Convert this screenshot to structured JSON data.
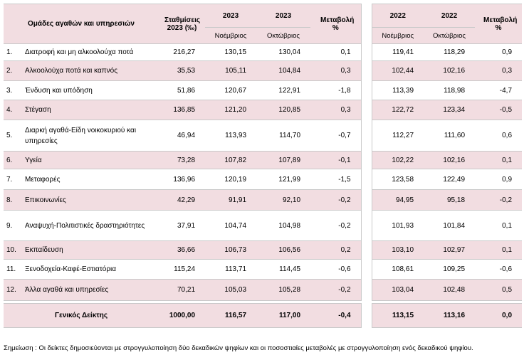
{
  "header": {
    "group": "Ομάδες αγαθών και υπηρεσιών",
    "weights": "Σταθμίσεις 2023 (‰)",
    "year_a": "2023",
    "year_b": "2023",
    "change_a": "Μεταβολή %",
    "year_c": "2022",
    "year_d": "2022",
    "change_b": "Μεταβολή %",
    "month_a": "Νοέμβριος",
    "month_b": "Οκτώβριος",
    "month_c": "Νοέμβριος",
    "month_d": "Οκτώβριος"
  },
  "table": {
    "rows": [
      [
        "1.",
        "Διατροφή και μη αλκοολούχα ποτά",
        "216,27",
        "130,15",
        "130,04",
        "0,1",
        "119,41",
        "118,29",
        "0,9"
      ],
      [
        "2.",
        "Αλκοολούχα ποτά και καπνός",
        "35,53",
        "105,11",
        "104,84",
        "0,3",
        "102,44",
        "102,16",
        "0,3"
      ],
      [
        "3.",
        "Ένδυση και υπόδηση",
        "51,86",
        "120,67",
        "122,91",
        "-1,8",
        "113,39",
        "118,98",
        "-4,7"
      ],
      [
        "4.",
        "Στέγαση",
        "136,85",
        "121,20",
        "120,85",
        "0,3",
        "122,72",
        "123,34",
        "-0,5"
      ],
      [
        "5.",
        "Διαρκή αγαθά-Είδη νοικοκυριού και υπηρεσίες",
        "46,94",
        "113,93",
        "114,70",
        "-0,7",
        "112,27",
        "111,60",
        "0,6"
      ],
      [
        "6.",
        "Υγεία",
        "73,28",
        "107,82",
        "107,89",
        "-0,1",
        "102,22",
        "102,16",
        "0,1"
      ],
      [
        "7.",
        "Μεταφορές",
        "136,96",
        "120,19",
        "121,99",
        "-1,5",
        "123,58",
        "122,49",
        "0,9"
      ],
      [
        "8.",
        "Επικοινωνίες",
        "42,29",
        "91,91",
        "92,10",
        "-0,2",
        "94,95",
        "95,18",
        "-0,2"
      ],
      [
        "9.",
        "Αναψυχή-Πολιτιστικές δραστηριότητες",
        "37,91",
        "104,74",
        "104,98",
        "-0,2",
        "101,93",
        "101,84",
        "0,1"
      ],
      [
        "10.",
        "Εκπαίδευση",
        "36,66",
        "106,73",
        "106,56",
        "0,2",
        "103,10",
        "102,97",
        "0,1"
      ],
      [
        "11.",
        "Ξενοδοχεία-Καφέ-Εστιατόρια",
        "115,24",
        "113,71",
        "114,45",
        "-0,6",
        "108,61",
        "109,25",
        "-0,6"
      ],
      [
        "12.",
        "Άλλα αγαθά και υπηρεσίες",
        "70,21",
        "105,03",
        "105,28",
        "-0,2",
        "103,04",
        "102,48",
        "0,5"
      ]
    ],
    "total": [
      "Γενικός Δείκτης",
      "1000,00",
      "116,57",
      "117,00",
      "-0,4",
      "113,15",
      "113,16",
      "0,0"
    ]
  },
  "note": "Σημείωση :  Οι δείκτες δημοσιεύονται με στρογγυλοποίηση δύο δεκαδικών ψηφίων και οι ποσοστιαίες μεταβολές με στρογγυλοποίηση ενός δεκαδικού ψηφίου."
}
